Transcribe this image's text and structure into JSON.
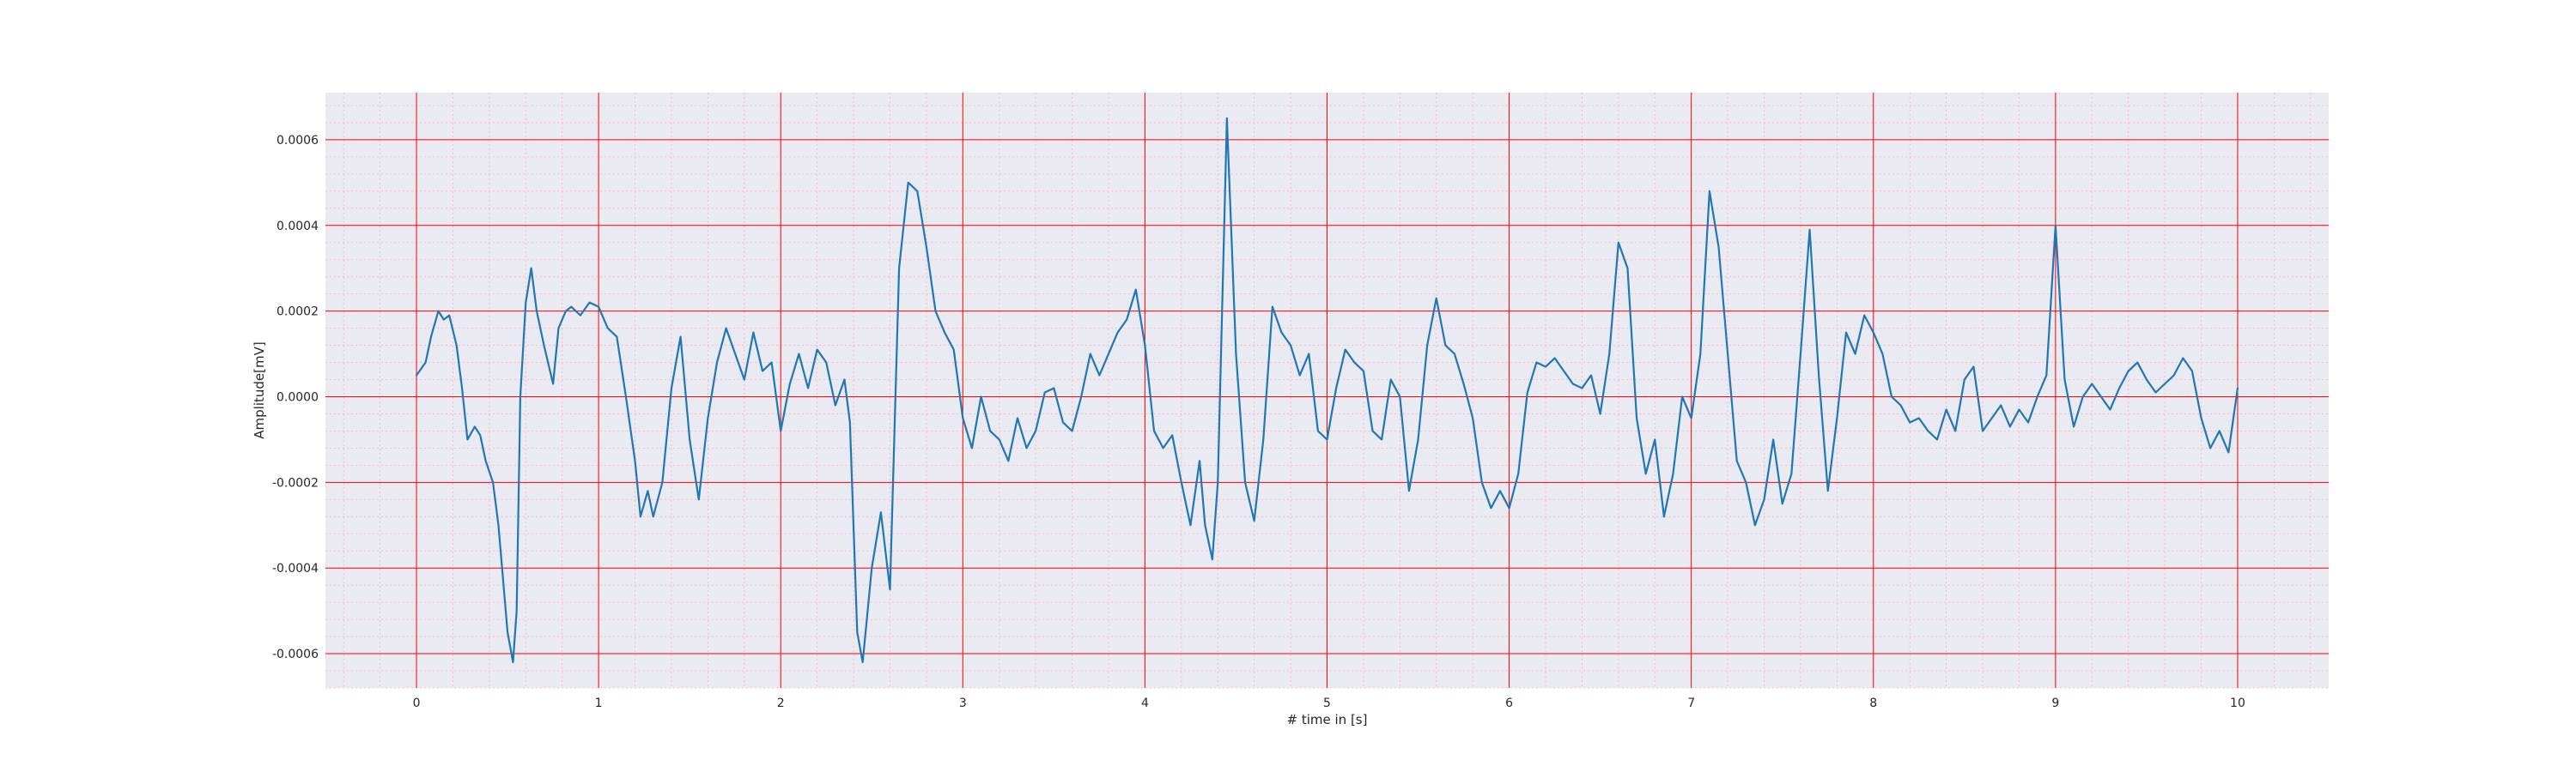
{
  "chart_data": {
    "type": "line",
    "title": "",
    "xlabel": "# time in [s]",
    "ylabel": "Amplitude[mV]",
    "xlim": [
      -0.5,
      10.5
    ],
    "ylim": [
      -0.00068,
      0.00071
    ],
    "x_ticks": [
      0,
      1,
      2,
      3,
      4,
      5,
      6,
      7,
      8,
      9,
      10
    ],
    "x_tick_labels": [
      "0",
      "1",
      "2",
      "3",
      "4",
      "5",
      "6",
      "7",
      "8",
      "9",
      "10"
    ],
    "y_ticks": [
      0.0006,
      0.0004,
      0.0002,
      0.0,
      -0.0002,
      -0.0004,
      -0.0006
    ],
    "y_tick_labels": [
      "0.0006",
      "0.0004",
      "0.0002",
      "0.0000",
      "-0.0002",
      "-0.0004",
      "-0.0006"
    ],
    "grid": true,
    "minor_grid": true,
    "colors": {
      "line": "#1f77b4",
      "plot_background": "#eaeaf2",
      "major_grid": "#ff0000",
      "minor_grid": "#ffb3b3"
    },
    "series": [
      {
        "x": [
          0,
          0.05,
          0.08,
          0.12,
          0.15,
          0.18,
          0.22,
          0.25,
          0.28,
          0.32,
          0.35,
          0.38,
          0.42,
          0.45,
          0.48,
          0.5,
          0.53,
          0.55,
          0.57,
          0.6,
          0.63,
          0.66,
          0.7,
          0.75,
          0.78,
          0.82,
          0.85,
          0.9,
          0.95,
          1.0,
          1.05,
          1.1,
          1.15,
          1.2,
          1.23,
          1.27,
          1.3,
          1.35,
          1.4,
          1.45,
          1.5,
          1.55,
          1.6,
          1.65,
          1.7,
          1.75,
          1.8,
          1.85,
          1.9,
          1.95,
          2.0,
          2.05,
          2.1,
          2.15,
          2.2,
          2.25,
          2.3,
          2.35,
          2.38,
          2.42,
          2.45,
          2.5,
          2.55,
          2.6,
          2.65,
          2.7,
          2.75,
          2.8,
          2.85,
          2.9,
          2.95,
          3.0,
          3.05,
          3.1,
          3.15,
          3.2,
          3.25,
          3.3,
          3.35,
          3.4,
          3.45,
          3.5,
          3.55,
          3.6,
          3.65,
          3.7,
          3.75,
          3.8,
          3.85,
          3.9,
          3.95,
          4.0,
          4.05,
          4.1,
          4.15,
          4.2,
          4.25,
          4.3,
          4.33,
          4.37,
          4.4,
          4.45,
          4.5,
          4.55,
          4.6,
          4.65,
          4.7,
          4.75,
          4.8,
          4.85,
          4.9,
          4.95,
          5.0,
          5.05,
          5.1,
          5.15,
          5.2,
          5.25,
          5.3,
          5.35,
          5.4,
          5.45,
          5.5,
          5.55,
          5.6,
          5.65,
          5.7,
          5.75,
          5.8,
          5.85,
          5.9,
          5.95,
          6.0,
          6.05,
          6.1,
          6.15,
          6.2,
          6.25,
          6.3,
          6.35,
          6.4,
          6.45,
          6.5,
          6.55,
          6.6,
          6.65,
          6.7,
          6.75,
          6.8,
          6.85,
          6.9,
          6.95,
          7.0,
          7.05,
          7.1,
          7.15,
          7.2,
          7.25,
          7.3,
          7.35,
          7.4,
          7.45,
          7.5,
          7.55,
          7.6,
          7.65,
          7.7,
          7.75,
          7.8,
          7.85,
          7.9,
          7.95,
          8.0,
          8.05,
          8.1,
          8.15,
          8.2,
          8.25,
          8.3,
          8.35,
          8.4,
          8.45,
          8.5,
          8.55,
          8.6,
          8.65,
          8.7,
          8.75,
          8.8,
          8.85,
          8.9,
          8.95,
          9.0,
          9.05,
          9.1,
          9.15,
          9.2,
          9.25,
          9.3,
          9.35,
          9.4,
          9.45,
          9.5,
          9.55,
          9.6,
          9.65,
          9.7,
          9.75,
          9.8,
          9.85,
          9.9,
          9.95,
          10.0
        ],
        "y": [
          5e-05,
          8e-05,
          0.00014,
          0.0002,
          0.00018,
          0.00019,
          0.00012,
          2e-05,
          -0.0001,
          -7e-05,
          -9e-05,
          -0.00015,
          -0.0002,
          -0.0003,
          -0.00045,
          -0.00055,
          -0.00062,
          -0.0005,
          0.0,
          0.00022,
          0.0003,
          0.0002,
          0.00012,
          3e-05,
          0.00016,
          0.0002,
          0.00021,
          0.00019,
          0.00022,
          0.00021,
          0.00016,
          0.00014,
          0.0,
          -0.00015,
          -0.00028,
          -0.00022,
          -0.00028,
          -0.0002,
          2e-05,
          0.00014,
          -0.0001,
          -0.00024,
          -5e-05,
          8e-05,
          0.00016,
          0.0001,
          4e-05,
          0.00015,
          6e-05,
          8e-05,
          -8e-05,
          3e-05,
          0.0001,
          2e-05,
          0.00011,
          8e-05,
          -2e-05,
          4e-05,
          -6e-05,
          -0.00055,
          -0.00062,
          -0.0004,
          -0.00027,
          -0.00045,
          0.0003,
          0.0005,
          0.00048,
          0.00035,
          0.0002,
          0.00015,
          0.00011,
          -5e-05,
          -0.00012,
          0.0,
          -8e-05,
          -0.0001,
          -0.00015,
          -5e-05,
          -0.00012,
          -8e-05,
          1e-05,
          2e-05,
          -6e-05,
          -8e-05,
          0.0,
          0.0001,
          5e-05,
          0.0001,
          0.00015,
          0.00018,
          0.00025,
          0.00012,
          -8e-05,
          -0.00012,
          -9e-05,
          -0.0002,
          -0.0003,
          -0.00015,
          -0.0003,
          -0.00038,
          -0.0002,
          0.00065,
          0.0001,
          -0.0002,
          -0.00029,
          -0.0001,
          0.00021,
          0.00015,
          0.00012,
          5e-05,
          0.0001,
          -8e-05,
          -0.0001,
          2e-05,
          0.00011,
          8e-05,
          6e-05,
          -8e-05,
          -0.0001,
          4e-05,
          0.0,
          -0.00022,
          -0.0001,
          0.00012,
          0.00023,
          0.00012,
          0.0001,
          3e-05,
          -5e-05,
          -0.0002,
          -0.00026,
          -0.00022,
          -0.00026,
          -0.00018,
          1e-05,
          8e-05,
          7e-05,
          9e-05,
          6e-05,
          3e-05,
          2e-05,
          5e-05,
          -4e-05,
          0.0001,
          0.00036,
          0.0003,
          -5e-05,
          -0.00018,
          -0.0001,
          -0.00028,
          -0.00018,
          0.0,
          -5e-05,
          0.0001,
          0.00048,
          0.00035,
          0.0001,
          -0.00015,
          -0.0002,
          -0.0003,
          -0.00024,
          -0.0001,
          -0.00025,
          -0.00018,
          0.0001,
          0.00039,
          5e-05,
          -0.00022,
          -5e-05,
          0.00015,
          0.0001,
          0.00019,
          0.00015,
          0.0001,
          0.0,
          -2e-05,
          -6e-05,
          -5e-05,
          -8e-05,
          -0.0001,
          -3e-05,
          -8e-05,
          4e-05,
          7e-05,
          -8e-05,
          -5e-05,
          -2e-05,
          -7e-05,
          -3e-05,
          -6e-05,
          0.0,
          5e-05,
          0.0004,
          4e-05,
          -7e-05,
          0.0,
          3e-05,
          0.0,
          -3e-05,
          2e-05,
          6e-05,
          8e-05,
          4e-05,
          1e-05,
          3e-05,
          5e-05,
          9e-05,
          6e-05,
          -5e-05,
          -0.00012,
          -8e-05,
          -0.00013,
          2e-05
        ]
      }
    ]
  }
}
